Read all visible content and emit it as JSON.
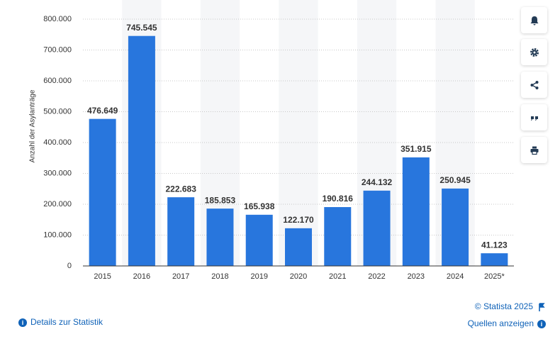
{
  "chart_data": {
    "type": "bar",
    "y_label": "Anzahl der Asylanträge",
    "categories": [
      "2015",
      "2016",
      "2017",
      "2018",
      "2019",
      "2020",
      "2021",
      "2022",
      "2023",
      "2024",
      "2025*"
    ],
    "values": [
      476649,
      745545,
      222683,
      185853,
      165938,
      122170,
      190816,
      244132,
      351915,
      250945,
      41123
    ],
    "value_labels": [
      "476.649",
      "745.545",
      "222.683",
      "185.853",
      "165.938",
      "122.170",
      "190.816",
      "244.132",
      "351.915",
      "250.945",
      "41.123"
    ],
    "color": "#2876dd",
    "ylim": [
      0,
      800000
    ],
    "yticks": [
      0,
      {
        "value": 100000,
        "label": "100.000"
      },
      {
        "value": 200000,
        "label": "200.000"
      },
      {
        "value": 300000,
        "label": "300.000"
      },
      {
        "value": 400000,
        "label": "400.000"
      },
      {
        "value": 500000,
        "label": "500.000"
      },
      {
        "value": 600000,
        "label": "600.000"
      },
      {
        "value": 700000,
        "label": "700.000"
      },
      {
        "value": 800000,
        "label": "800.000"
      }
    ],
    "grid": true
  },
  "footer": {
    "copyright": "© Statista 2025",
    "details": "Details zur Statistik",
    "sources": "Quellen anzeigen"
  }
}
